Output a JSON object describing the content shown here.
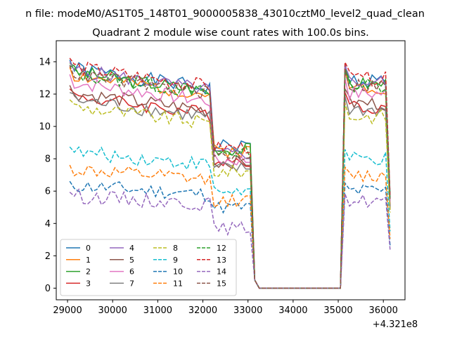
{
  "chart_data": {
    "type": "line",
    "suptitle": "n file: modeM0/AS1T05_148T01_9000005838_43010cztM0_level2_quad_clean",
    "title": "Quadrant 2 module wise count rates with 100.0s bins.",
    "xlabel": "",
    "ylabel": "",
    "x_offset_label": "+4.321e8",
    "xlim": [
      28750,
      36480
    ],
    "ylim": [
      -0.72,
      15.3
    ],
    "x_ticks": [
      29000,
      30000,
      31000,
      32000,
      33000,
      34000,
      35000,
      36000
    ],
    "x_tick_labels": [
      "29000",
      "30000",
      "31000",
      "32000",
      "33000",
      "34000",
      "35000",
      "36000"
    ],
    "y_ticks": [
      0,
      2,
      4,
      6,
      8,
      10,
      12,
      14
    ],
    "y_tick_labels": [
      "0",
      "2",
      "4",
      "6",
      "8",
      "10",
      "12",
      "14"
    ],
    "grid": false,
    "legend_placement": "lower-left",
    "legend_columns": 4,
    "segments": {
      "start": 29050,
      "step": 100,
      "active_end_1": 32150,
      "dropped_end": 33050,
      "gap_start": 33250,
      "gap_end": 35050,
      "active_start_2": 35250,
      "end": 36150
    },
    "series": [
      {
        "name": "0",
        "color": "#1f77b4",
        "dash": "solid",
        "level": 12.6,
        "drop": 8.8,
        "seed": 1
      },
      {
        "name": "1",
        "color": "#ff7f0e",
        "dash": "solid",
        "level": 12.2,
        "drop": 8.5,
        "seed": 2
      },
      {
        "name": "2",
        "color": "#2ca02c",
        "dash": "solid",
        "level": 12.4,
        "drop": 8.6,
        "seed": 3
      },
      {
        "name": "3",
        "color": "#d62728",
        "dash": "solid",
        "level": 11.0,
        "drop": 7.9,
        "seed": 4
      },
      {
        "name": "4",
        "color": "#9467bd",
        "dash": "solid",
        "level": 12.5,
        "drop": 8.3,
        "seed": 5
      },
      {
        "name": "5",
        "color": "#8c564b",
        "dash": "solid",
        "level": 11.2,
        "drop": 7.8,
        "seed": 6
      },
      {
        "name": "6",
        "color": "#e377c2",
        "dash": "solid",
        "level": 11.8,
        "drop": 7.9,
        "seed": 7
      },
      {
        "name": "7",
        "color": "#7f7f7f",
        "dash": "solid",
        "level": 10.8,
        "drop": 7.4,
        "seed": 8
      },
      {
        "name": "8",
        "color": "#bcbd22",
        "dash": "dashed",
        "level": 10.4,
        "drop": 7.2,
        "seed": 9
      },
      {
        "name": "9",
        "color": "#17becf",
        "dash": "dashed",
        "level": 7.8,
        "drop": 6.0,
        "seed": 10
      },
      {
        "name": "10",
        "color": "#1f77b4",
        "dash": "dashed",
        "level": 5.9,
        "drop": 5.0,
        "seed": 11
      },
      {
        "name": "11",
        "color": "#ff7f0e",
        "dash": "dashed",
        "level": 6.8,
        "drop": 5.4,
        "seed": 12
      },
      {
        "name": "12",
        "color": "#2ca02c",
        "dash": "dashed",
        "level": 12.3,
        "drop": 8.4,
        "seed": 13
      },
      {
        "name": "13",
        "color": "#d62728",
        "dash": "dashed",
        "level": 12.7,
        "drop": 8.7,
        "seed": 14
      },
      {
        "name": "14",
        "color": "#9467bd",
        "dash": "dashed",
        "level": 5.3,
        "drop": 3.7,
        "seed": 15
      },
      {
        "name": "15",
        "color": "#8c564b",
        "dash": "dashed",
        "level": 12.3,
        "drop": 8.2,
        "seed": 16
      }
    ]
  }
}
